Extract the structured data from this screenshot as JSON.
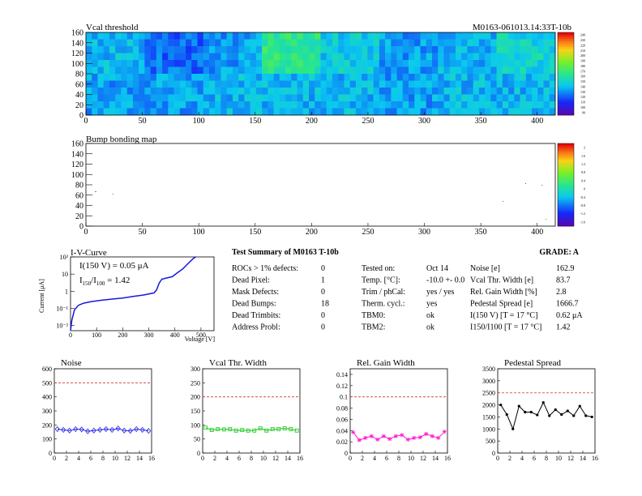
{
  "colors": {
    "accent_red": "#d23232",
    "noise_series": "#2626e6",
    "vcal_series": "#1ac81a",
    "gain_series": "#ff1ecf",
    "pedestal_series": "#000000",
    "iv_curve": "#1717e0"
  },
  "top_map": {
    "title": "Vcal threshold",
    "module_id": "M0163-061013.14:33T-10b",
    "x_ticks": [
      "0",
      "50",
      "100",
      "150",
      "200",
      "250",
      "300",
      "350",
      "400"
    ],
    "y_ticks": [
      "0",
      "20",
      "40",
      "60",
      "80",
      "100",
      "120",
      "140",
      "160"
    ],
    "palette_ticks": [
      "90",
      "100",
      "110",
      "120",
      "130",
      "140",
      "150",
      "160",
      "170",
      "180",
      "190",
      "200",
      "210",
      "220",
      "230",
      "240"
    ]
  },
  "bump_map": {
    "title": "Bump bonding map",
    "x_ticks": [
      "0",
      "50",
      "100",
      "150",
      "200",
      "250",
      "300",
      "350",
      "400"
    ],
    "y_ticks": [
      "0",
      "20",
      "40",
      "60",
      "80",
      "100",
      "120",
      "140",
      "160"
    ],
    "palette_ticks": [
      "-1.6",
      "-1.2",
      "-0.8",
      "-0.4",
      "0",
      "0.4",
      "0.8",
      "1.2",
      "1.6",
      "2"
    ]
  },
  "iv_curve": {
    "title": "I-V-Curve",
    "xlabel": "Voltage [V]",
    "ylabel": "Current [μA]",
    "x_ticks": [
      "0",
      "100",
      "200",
      "300",
      "400",
      "500"
    ],
    "y_ticks": [
      "10⁻²",
      "10⁻¹",
      "1",
      "10",
      "10²"
    ],
    "annotation_i150": "I(150 V) = 0.05 μA",
    "annotation_ratio_main": "I",
    "annotation_ratio_sub1": "150",
    "annotation_ratio_mid": "/I",
    "annotation_ratio_sub2": "100",
    "annotation_ratio_val": " = 1.42"
  },
  "summary": {
    "title": "Test Summary of M0163    T-10b",
    "grade": "GRADE:  A",
    "col1": [
      {
        "label": "ROCs > 1% defects:",
        "value": "0"
      },
      {
        "label": "Dead Pixel:",
        "value": "1"
      },
      {
        "label": "Mask Defects:",
        "value": "0"
      },
      {
        "label": "Dead Bumps:",
        "value": "18"
      },
      {
        "label": "Dead Trimbits:",
        "value": "0"
      },
      {
        "label": "Address Probl:",
        "value": "0"
      }
    ],
    "col2": [
      {
        "label": "Tested on:",
        "value": "Oct 14"
      },
      {
        "label": "Temp. [°C]:",
        "value": "-10.0 +- 0.0"
      },
      {
        "label": "Trim / phCal:",
        "value": "yes / yes"
      },
      {
        "label": "Therm. cycl.:",
        "value": "yes"
      },
      {
        "label": "TBM0:",
        "value": "ok"
      },
      {
        "label": "TBM2:",
        "value": "ok"
      }
    ],
    "col3": [
      {
        "label": "Noise [e]",
        "value": "162.9"
      },
      {
        "label": "Vcal Thr. Width [e]",
        "value": "83.7"
      },
      {
        "label": "Rel. Gain Width [%]",
        "value": "2.8"
      },
      {
        "label": "Pedestal Spread [e]",
        "value": "1666.7"
      },
      {
        "label": "I(150 V) [T = 17 °C]",
        "value": "0.62 μA"
      },
      {
        "label": "I150/I100  [T = 17 °C]",
        "value": "1.42"
      }
    ]
  },
  "chart_data": [
    {
      "type": "heatmap",
      "title": "Vcal threshold",
      "xlim": [
        0,
        416
      ],
      "ylim": [
        0,
        160
      ],
      "zlim": [
        90,
        240
      ],
      "roc_grid": [
        8,
        2
      ],
      "roc_mean_estimates": [
        [
          135,
          135,
          140,
          140,
          140,
          135,
          140,
          140
        ],
        [
          140,
          125,
          135,
          165,
          145,
          135,
          140,
          150
        ]
      ]
    },
    {
      "type": "heatmap",
      "title": "Bump bonding map",
      "xlim": [
        0,
        416
      ],
      "ylim": [
        0,
        160
      ],
      "zlim": [
        -2,
        2
      ]
    },
    {
      "type": "line",
      "title": "I-V-Curve",
      "xlabel": "Voltage [V]",
      "ylabel": "Current [μA]",
      "x_scale": "linear",
      "y_scale": "log",
      "xlim": [
        0,
        550
      ],
      "ylim": [
        0.005,
        100
      ],
      "series": [
        {
          "x": [
            0,
            5,
            15,
            30,
            50,
            80,
            120,
            160,
            200,
            240,
            280,
            320,
            330,
            340,
            350,
            370,
            390,
            410,
            430,
            450,
            470,
            480
          ],
          "y": [
            0.005,
            0.02,
            0.08,
            0.15,
            0.2,
            0.25,
            0.3,
            0.35,
            0.4,
            0.5,
            0.6,
            0.8,
            1.2,
            3,
            5,
            6,
            7,
            12,
            20,
            40,
            80,
            100
          ]
        }
      ]
    },
    {
      "type": "line",
      "title": "Noise",
      "xlim": [
        0,
        16
      ],
      "ylim": [
        0,
        600
      ],
      "x_ticks": [
        "0",
        "2",
        "4",
        "6",
        "8",
        "10",
        "12",
        "14",
        "16"
      ],
      "y_ticks": [
        "0",
        "100",
        "200",
        "300",
        "400",
        "500",
        "600"
      ],
      "reference_line": 500,
      "x": [
        0,
        1,
        2,
        3,
        4,
        5,
        6,
        7,
        8,
        9,
        10,
        11,
        12,
        13,
        14,
        15
      ],
      "series": [
        {
          "values": [
            170,
            165,
            160,
            170,
            168,
            155,
            160,
            165,
            170,
            165,
            175,
            160,
            158,
            170,
            165,
            158
          ]
        }
      ]
    },
    {
      "type": "line",
      "title": "Vcal Thr. Width",
      "xlim": [
        0,
        16
      ],
      "ylim": [
        0,
        300
      ],
      "x_ticks": [
        "0",
        "2",
        "4",
        "6",
        "8",
        "10",
        "12",
        "14",
        "16"
      ],
      "y_ticks": [
        "0",
        "50",
        "100",
        "150",
        "200",
        "250",
        "300"
      ],
      "reference_line": 200,
      "x": [
        0,
        1,
        2,
        3,
        4,
        5,
        6,
        7,
        8,
        9,
        10,
        11,
        12,
        13,
        14,
        15
      ],
      "series": [
        {
          "values": [
            90,
            82,
            85,
            84,
            85,
            80,
            82,
            80,
            80,
            88,
            80,
            85,
            85,
            88,
            85,
            80
          ]
        }
      ]
    },
    {
      "type": "line",
      "title": "Rel. Gain Width",
      "xlim": [
        0,
        16
      ],
      "ylim": [
        0,
        0.15
      ],
      "x_ticks": [
        "0",
        "2",
        "4",
        "6",
        "8",
        "10",
        "12",
        "14",
        "16"
      ],
      "y_ticks": [
        "0",
        "0.02",
        "0.04",
        "0.06",
        "0.08",
        "0.1",
        "0.12",
        "0.14"
      ],
      "reference_line": 0.1,
      "x": [
        0,
        1,
        2,
        3,
        4,
        5,
        6,
        7,
        8,
        9,
        10,
        11,
        12,
        13,
        14,
        15
      ],
      "series": [
        {
          "values": [
            0.037,
            0.023,
            0.027,
            0.03,
            0.024,
            0.03,
            0.025,
            0.03,
            0.032,
            0.024,
            0.027,
            0.028,
            0.034,
            0.03,
            0.027,
            0.038
          ]
        }
      ]
    },
    {
      "type": "line",
      "title": "Pedestal Spread",
      "xlim": [
        0,
        16
      ],
      "ylim": [
        0,
        3500
      ],
      "x_ticks": [
        "0",
        "2",
        "4",
        "6",
        "8",
        "10",
        "12",
        "14",
        "16"
      ],
      "y_ticks": [
        "0",
        "500",
        "1000",
        "1500",
        "2000",
        "2500",
        "3000",
        "3500"
      ],
      "reference_line": 2500,
      "x": [
        0,
        1,
        2,
        3,
        4,
        5,
        6,
        7,
        8,
        9,
        10,
        11,
        12,
        13,
        14,
        15
      ],
      "series": [
        {
          "values": [
            2000,
            1600,
            1000,
            1950,
            1700,
            1700,
            1580,
            2100,
            1550,
            1800,
            1600,
            1750,
            1550,
            1950,
            1550,
            1500
          ]
        }
      ]
    }
  ]
}
